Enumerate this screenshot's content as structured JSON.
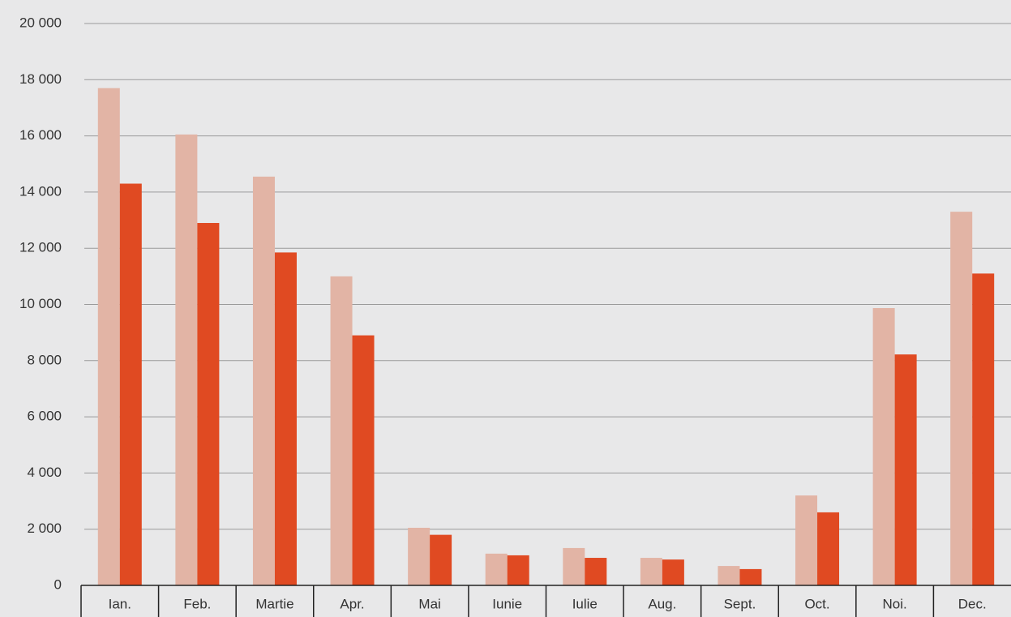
{
  "chart_data": {
    "type": "bar",
    "categories": [
      "Ian.",
      "Feb.",
      "Martie",
      "Apr.",
      "Mai",
      "Iunie",
      "Iulie",
      "Aug.",
      "Sept.",
      "Oct.",
      "Noi.",
      "Dec."
    ],
    "series": [
      {
        "color": "#e2b4a5",
        "values": [
          17700,
          16050,
          14550,
          11000,
          2050,
          1130,
          1330,
          980,
          690,
          3200,
          9870,
          13300
        ]
      },
      {
        "color": "#e04a22",
        "values": [
          14300,
          12900,
          11850,
          8900,
          1800,
          1070,
          980,
          920,
          580,
          2600,
          8220,
          11100
        ]
      }
    ],
    "ylim": [
      0,
      20000
    ],
    "yticks": [
      0,
      {
        "value": 2000,
        "label": "2 000"
      },
      {
        "value": 4000,
        "label": "4 000"
      },
      {
        "value": 6000,
        "label": "6 000"
      },
      {
        "value": 8000,
        "label": "8 000"
      },
      {
        "value": 10000,
        "label": "10 000"
      },
      {
        "value": 12000,
        "label": "12 000"
      },
      {
        "value": 14000,
        "label": "14 000"
      },
      {
        "value": 16000,
        "label": "16 000"
      },
      {
        "value": 18000,
        "label": "18 000"
      },
      {
        "value": 20000,
        "label": "20 000"
      }
    ],
    "grid": true
  }
}
